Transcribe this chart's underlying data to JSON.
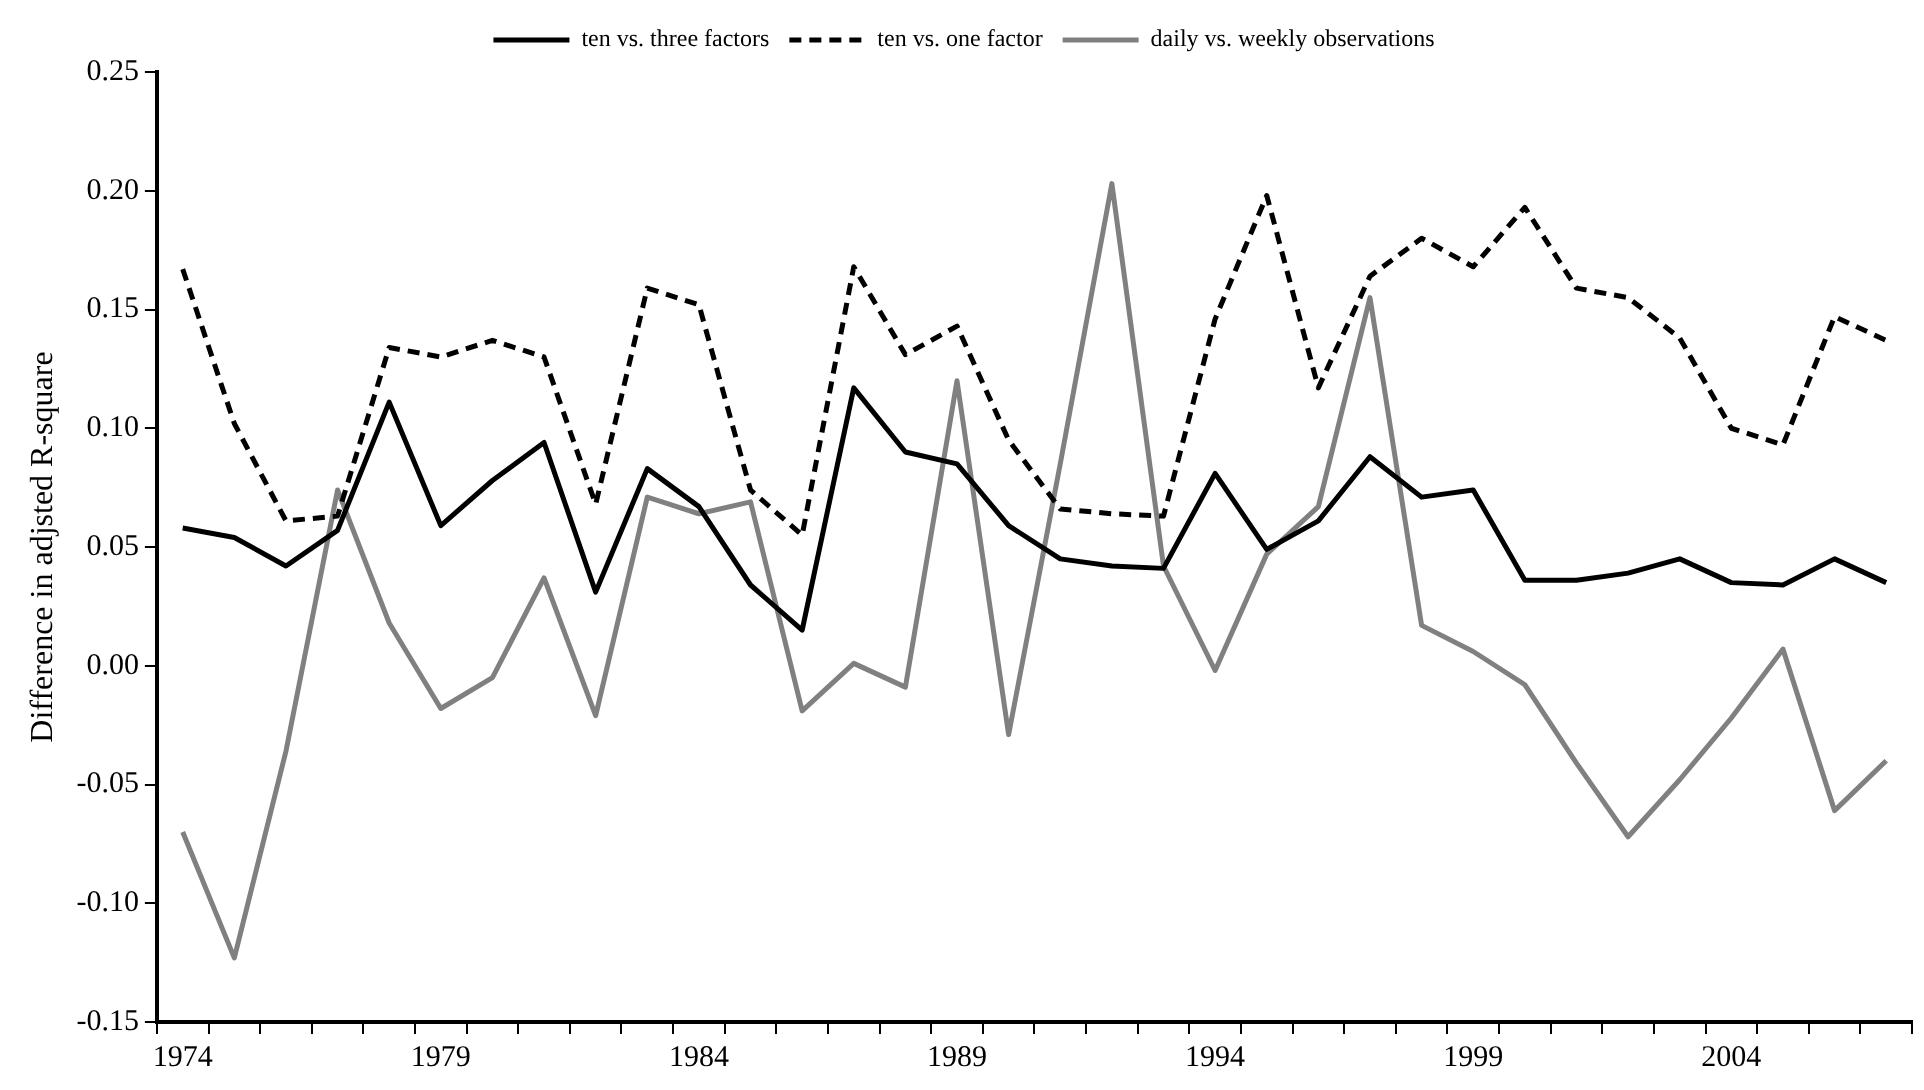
{
  "chart_data": {
    "type": "line",
    "ylabel": "Difference in adjsted R-square",
    "categories": [
      "1974",
      null,
      null,
      null,
      null,
      "1979",
      null,
      null,
      null,
      null,
      "1984",
      null,
      null,
      null,
      null,
      "1989",
      null,
      null,
      null,
      null,
      "1994",
      null,
      null,
      null,
      null,
      "1999",
      null,
      null,
      null,
      null,
      "2004",
      null,
      null,
      null
    ],
    "ylim": [
      -0.15,
      0.25
    ],
    "yticks": [
      {
        "value": -0.15,
        "label": "-0.15"
      },
      {
        "value": -0.1,
        "label": "-0.10"
      },
      {
        "value": -0.05,
        "label": "-0.05"
      },
      {
        "value": 0,
        "label": "0.00"
      },
      {
        "value": 0.05,
        "label": "0.05"
      },
      {
        "value": 0.1,
        "label": "0.10"
      },
      {
        "value": 0.15,
        "label": "0.15"
      },
      {
        "value": 0.2,
        "label": "0.20"
      },
      {
        "value": 0.25,
        "label": "0.25"
      }
    ],
    "grid": false,
    "legend": "top",
    "marker": "none",
    "series": [
      {
        "name": "ten vs. three factors",
        "color": "#000000",
        "line_style": "solid",
        "values": [
          0.058,
          0.054,
          0.042,
          0.057,
          0.111,
          0.059,
          0.078,
          0.094,
          0.031,
          0.083,
          0.067,
          0.034,
          0.015,
          0.117,
          0.09,
          0.085,
          0.059,
          0.045,
          0.042,
          0.041,
          0.081,
          0.049,
          0.061,
          0.088,
          0.071,
          0.074,
          0.036,
          0.036,
          0.039,
          0.045,
          0.035,
          0.034,
          0.045,
          0.035
        ]
      },
      {
        "name": "ten vs. one factor",
        "color": "#000000",
        "line_style": "dashed",
        "values": [
          0.167,
          0.102,
          0.061,
          0.063,
          0.134,
          0.13,
          0.137,
          0.13,
          0.068,
          0.159,
          0.152,
          0.074,
          0.055,
          0.168,
          0.131,
          0.143,
          0.095,
          0.066,
          0.064,
          0.063,
          0.146,
          0.198,
          0.117,
          0.164,
          0.18,
          0.168,
          0.193,
          0.159,
          0.155,
          0.138,
          0.1,
          0.093,
          0.147,
          0.137
        ]
      },
      {
        "name": "daily vs. weekly observations",
        "color": "#808080",
        "line_style": "solid",
        "values": [
          -0.07,
          -0.123,
          -0.036,
          0.074,
          0.018,
          -0.018,
          -0.005,
          0.037,
          -0.021,
          0.071,
          0.064,
          0.069,
          -0.019,
          0.001,
          -0.009,
          0.12,
          -0.029,
          0.085,
          0.203,
          0.042,
          -0.002,
          0.047,
          0.067,
          0.155,
          0.017,
          0.006,
          -0.008,
          -0.041,
          -0.072,
          -0.048,
          -0.022,
          0.007,
          -0.061,
          -0.04
        ]
      }
    ]
  }
}
